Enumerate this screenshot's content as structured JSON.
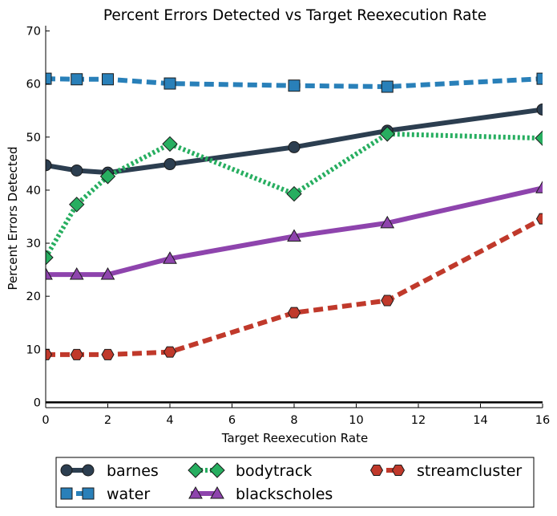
{
  "chart_data": {
    "type": "line",
    "title": "Percent Errors Detected vs Target Reexecution Rate",
    "xlabel": "Target Reexecution Rate",
    "ylabel": "Percent Errors Detected",
    "xlim": [
      0,
      16
    ],
    "ylim": [
      -1,
      71
    ],
    "xticks": [
      0,
      2,
      4,
      6,
      8,
      10,
      12,
      14,
      16
    ],
    "yticks": [
      0,
      10,
      20,
      30,
      40,
      50,
      60,
      70
    ],
    "grid": false,
    "legend_position": "bottom",
    "x": [
      0,
      1,
      2,
      4,
      8,
      11,
      16
    ],
    "series": [
      {
        "name": "barnes",
        "values": [
          44.7,
          43.7,
          43.3,
          44.9,
          48.1,
          51.2,
          55.2
        ],
        "color": "#2c3e50",
        "marker": "circle",
        "line_style": "solid"
      },
      {
        "name": "water",
        "values": [
          61.0,
          60.9,
          60.9,
          60.1,
          59.7,
          59.5,
          61.0
        ],
        "color": "#2980b9",
        "marker": "square",
        "line_style": "dashed"
      },
      {
        "name": "bodytrack",
        "values": [
          27.3,
          37.3,
          42.6,
          48.7,
          39.3,
          50.6,
          49.8
        ],
        "color": "#27ae60",
        "marker": "diamond",
        "line_style": "dotted"
      },
      {
        "name": "blackscholes",
        "values": [
          24.1,
          24.1,
          24.1,
          27.1,
          31.3,
          33.8,
          40.4
        ],
        "color": "#8e44ad",
        "marker": "triangle",
        "line_style": "solid"
      },
      {
        "name": "streamcluster",
        "values": [
          9.0,
          9.0,
          9.0,
          9.5,
          16.9,
          19.2,
          34.6
        ],
        "color": "#c0392b",
        "marker": "hexagon",
        "line_style": "dashed"
      }
    ]
  }
}
